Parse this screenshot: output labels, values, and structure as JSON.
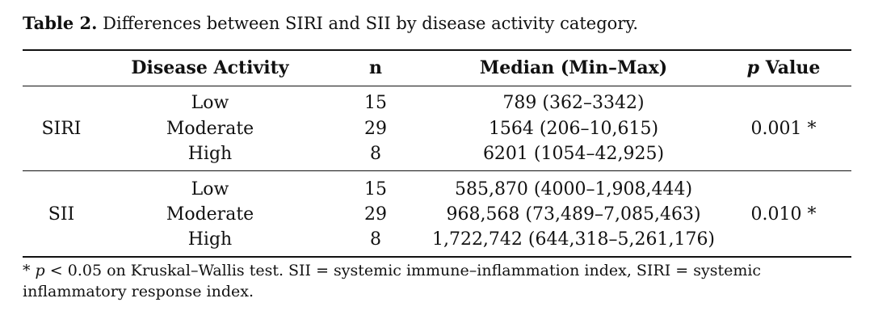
{
  "caption": {
    "label": "Table 2.",
    "text": "Differences between SIRI and SII by disease activity category."
  },
  "headers": {
    "disease_activity": "Disease Activity",
    "n": "n",
    "median": "Median (Min–Max)",
    "p_italic": "p",
    "p_rest": "Value"
  },
  "groups": [
    {
      "name": "SIRI",
      "p_value": "0.001 *",
      "rows": [
        {
          "activity": "Low",
          "n": "15",
          "median": "789 (362–3342)"
        },
        {
          "activity": "Moderate",
          "n": "29",
          "median": "1564 (206–10,615)"
        },
        {
          "activity": "High",
          "n": "8",
          "median": "6201 (1054–42,925)"
        }
      ]
    },
    {
      "name": "SII",
      "p_value": "0.010 *",
      "rows": [
        {
          "activity": "Low",
          "n": "15",
          "median": "585,870 (4000–1,908,444)"
        },
        {
          "activity": "Moderate",
          "n": "29",
          "median": "968,568 (73,489–7,085,463)"
        },
        {
          "activity": "High",
          "n": "8",
          "median": "1,722,742 (644,318–5,261,176)"
        }
      ]
    }
  ],
  "footnote": {
    "star": "*",
    "p_italic": "p",
    "text": "< 0.05 on Kruskal–Wallis test. SII = systemic immune–inflammation index, SIRI = systemic inflammatory response index."
  }
}
